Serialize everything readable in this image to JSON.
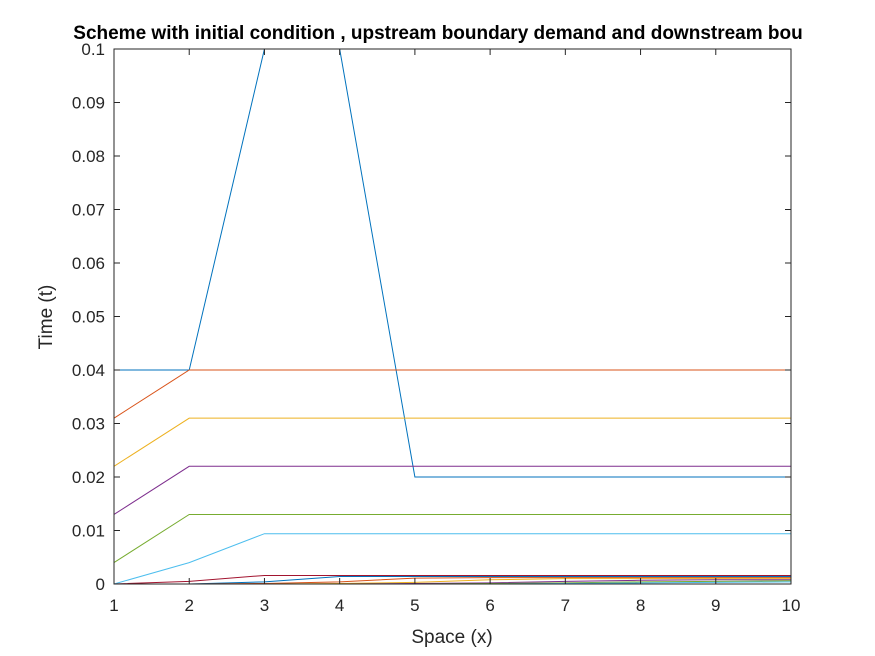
{
  "chart_data": {
    "type": "line",
    "title": "Scheme with initial condition , upstream boundary demand and downstream bou",
    "xlabel": "Space (x)",
    "ylabel": "Time (t)",
    "xlim": [
      1,
      10
    ],
    "ylim": [
      0,
      0.1
    ],
    "xticks": [
      "1",
      "2",
      "3",
      "4",
      "5",
      "6",
      "7",
      "8",
      "9",
      "10"
    ],
    "yticks": [
      "0",
      "0.01",
      "0.02",
      "0.03",
      "0.04",
      "0.05",
      "0.06",
      "0.07",
      "0.08",
      "0.09",
      "0.1"
    ],
    "grid": false,
    "legend": "none",
    "x": [
      1,
      2,
      3,
      4,
      5,
      6,
      7,
      8,
      9,
      10
    ],
    "series": [
      {
        "color": "#0072bd",
        "values": [
          0.04,
          0.04,
          0.1,
          0.1,
          0.02,
          0.02,
          0.02,
          0.02,
          0.02,
          0.02
        ]
      },
      {
        "color": "#d95319",
        "values": [
          0.031,
          0.04,
          0.04,
          0.04,
          0.04,
          0.04,
          0.04,
          0.04,
          0.04,
          0.04
        ]
      },
      {
        "color": "#edb120",
        "values": [
          0.022,
          0.031,
          0.031,
          0.031,
          0.031,
          0.031,
          0.031,
          0.031,
          0.031,
          0.031
        ]
      },
      {
        "color": "#7e2f8e",
        "values": [
          0.013,
          0.022,
          0.022,
          0.022,
          0.022,
          0.022,
          0.022,
          0.022,
          0.022,
          0.022
        ]
      },
      {
        "color": "#77ac30",
        "values": [
          0.004,
          0.013,
          0.013,
          0.013,
          0.013,
          0.013,
          0.013,
          0.013,
          0.013,
          0.013
        ]
      },
      {
        "color": "#4dbeee",
        "values": [
          0.0,
          0.004,
          0.0094,
          0.0094,
          0.0094,
          0.0094,
          0.0094,
          0.0094,
          0.0094,
          0.0094
        ]
      },
      {
        "color": "#a2142f",
        "values": [
          0.0,
          0.0005,
          0.0016,
          0.0016,
          0.0016,
          0.0016,
          0.0016,
          0.0016,
          0.0016,
          0.0016
        ]
      },
      {
        "color": "#0072bd",
        "values": [
          0.0,
          0.0,
          0.0004,
          0.0014,
          0.0014,
          0.0014,
          0.0014,
          0.0014,
          0.0014,
          0.0014
        ]
      },
      {
        "color": "#d95319",
        "values": [
          0.0,
          0.0,
          0.0001,
          0.0004,
          0.0011,
          0.0012,
          0.0012,
          0.0012,
          0.0012,
          0.0012
        ]
      },
      {
        "color": "#edb120",
        "values": [
          0.0,
          0.0,
          0.0,
          0.0001,
          0.0003,
          0.0008,
          0.001,
          0.001,
          0.001,
          0.001
        ]
      },
      {
        "color": "#7e2f8e",
        "values": [
          0.0,
          0.0,
          0.0,
          0.0,
          0.0001,
          0.0002,
          0.0005,
          0.0007,
          0.0008,
          0.0008
        ]
      },
      {
        "color": "#77ac30",
        "values": [
          0.0,
          0.0,
          0.0,
          0.0,
          0.0,
          0.0001,
          0.0002,
          0.0004,
          0.0005,
          0.0006
        ]
      },
      {
        "color": "#4dbeee",
        "values": [
          0.0,
          0.0,
          0.0,
          0.0,
          0.0,
          0.0,
          0.0001,
          0.0002,
          0.0003,
          0.0004
        ]
      }
    ]
  }
}
